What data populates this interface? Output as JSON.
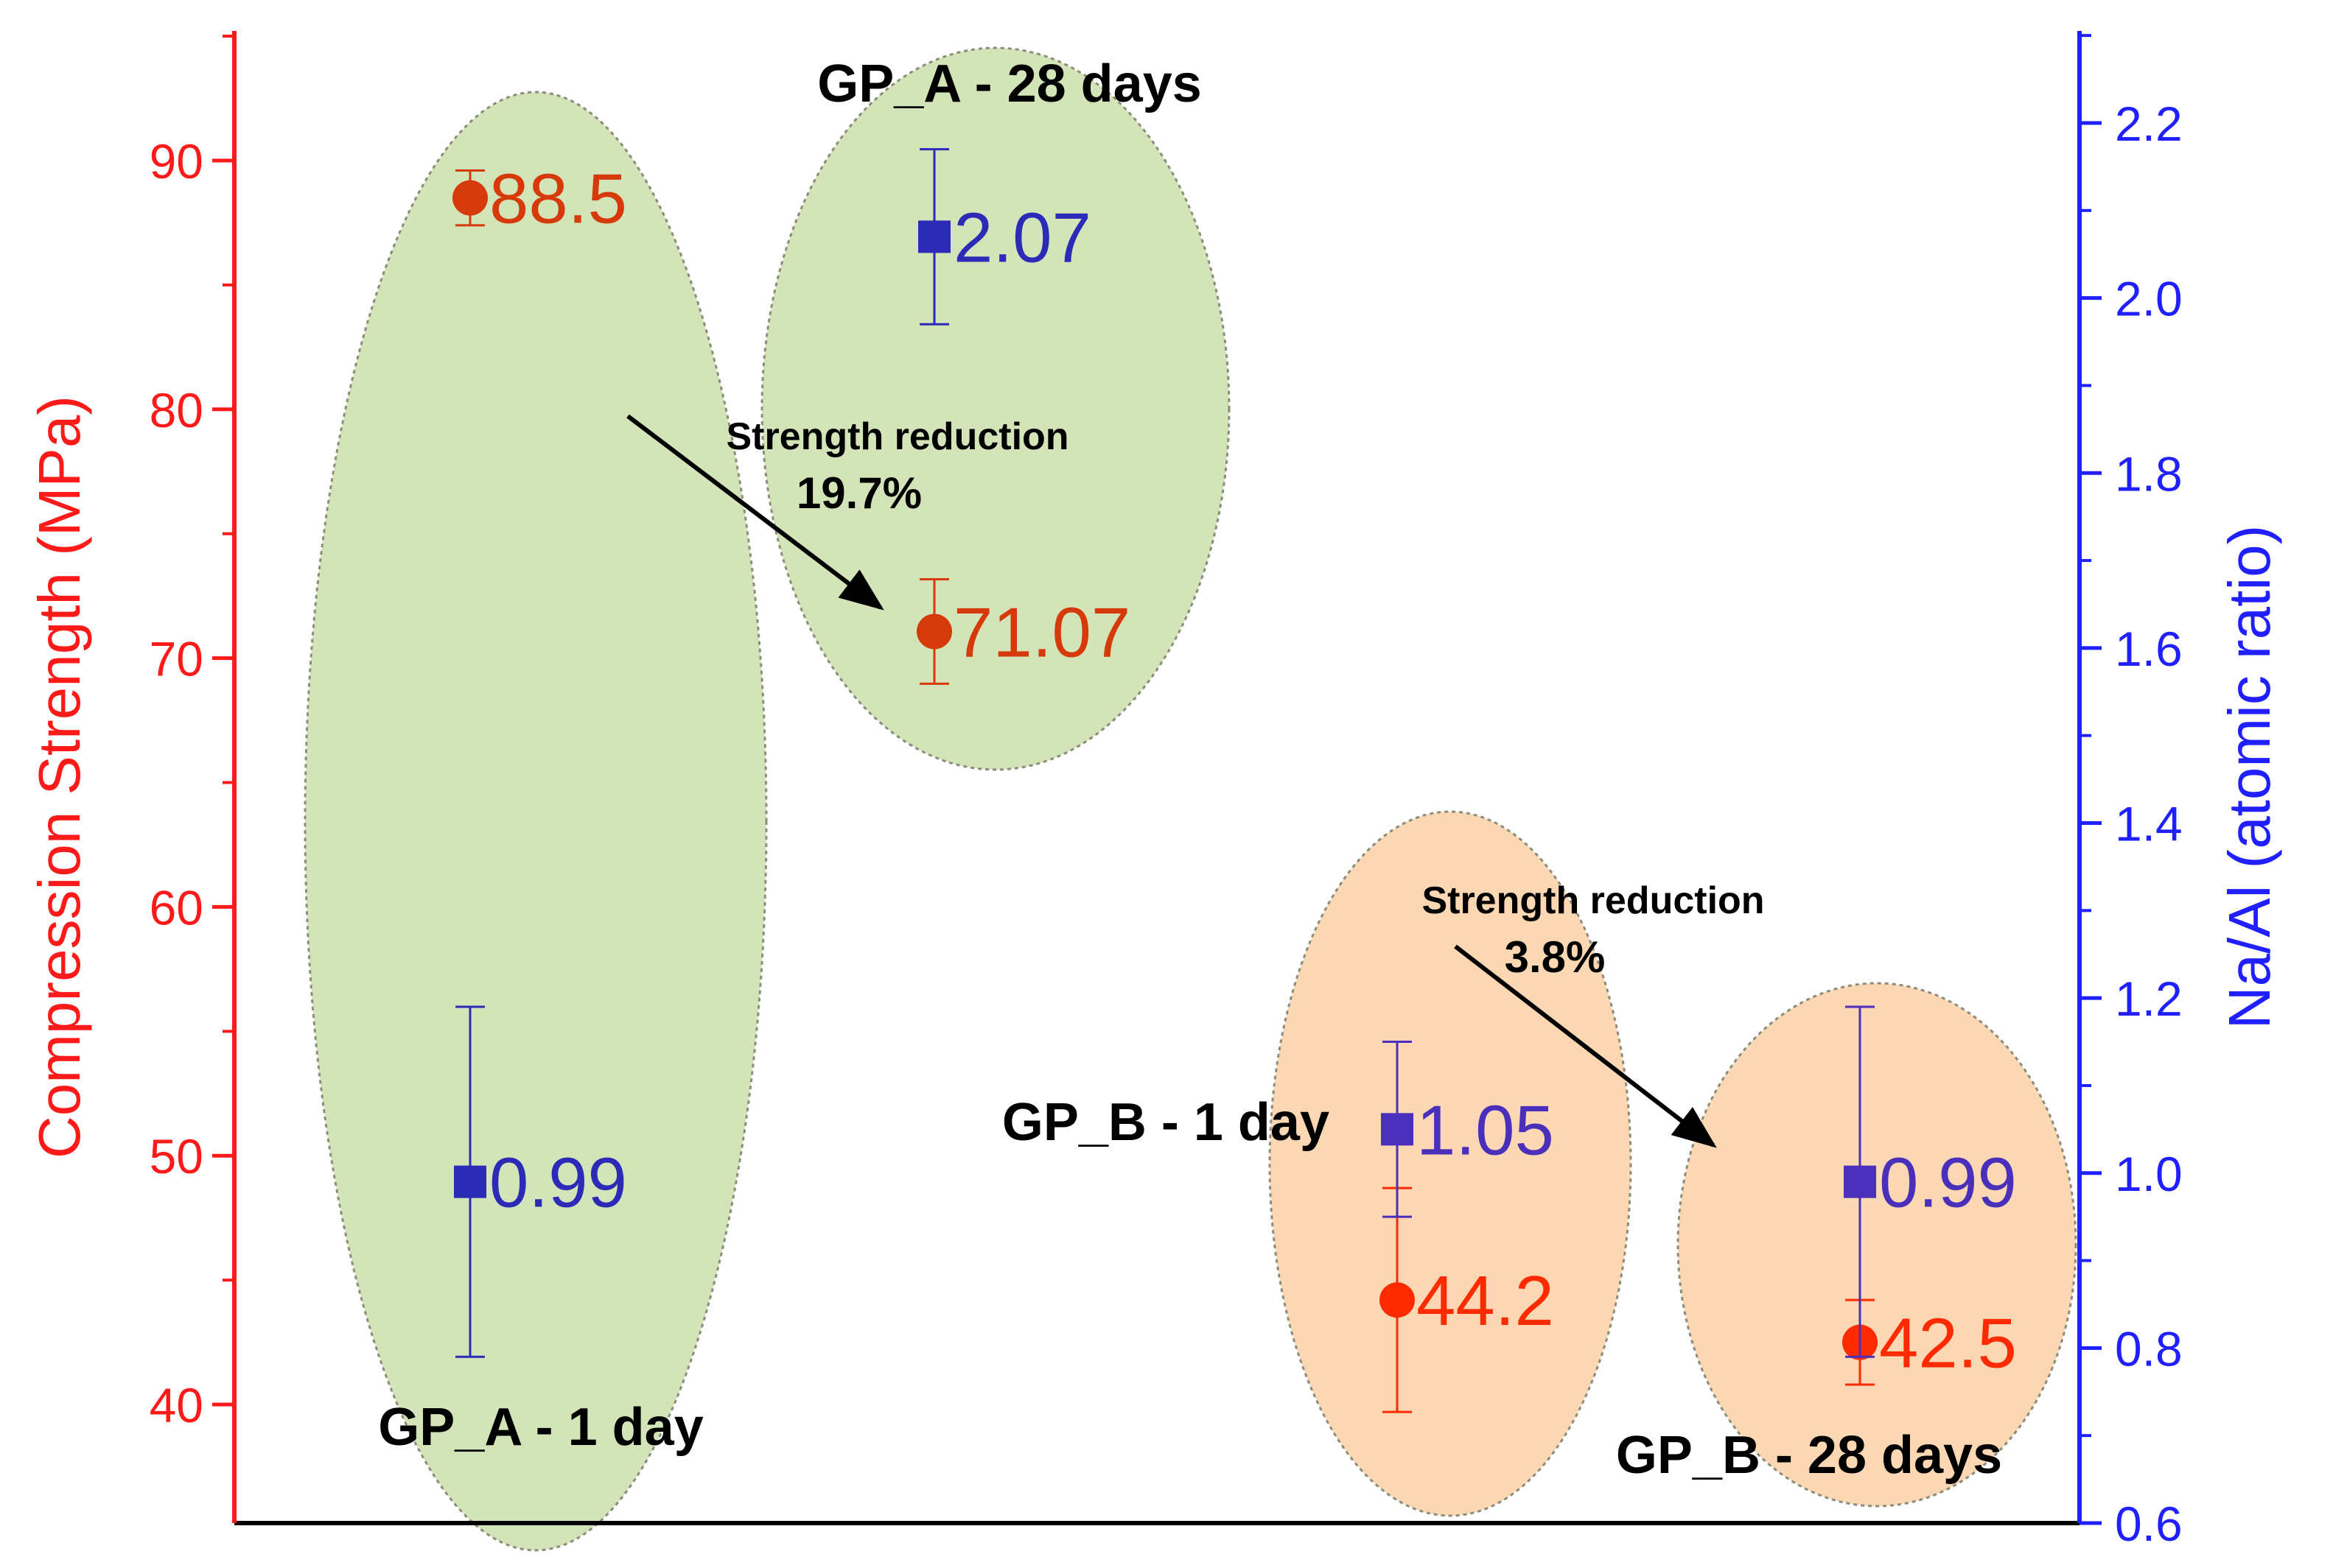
{
  "chart_data": {
    "type": "scatter",
    "title": "",
    "ylabel_left": "Compression Strength (MPa)",
    "ylabel_right": "Na/Al (atomic ratio)",
    "ylim_left": [
      35,
      95
    ],
    "ylim_right": [
      0.6,
      2.3
    ],
    "yticks_left": [
      {
        "value": 40,
        "label": "40"
      },
      {
        "value": 50,
        "label": "50"
      },
      {
        "value": 60,
        "label": "60"
      },
      {
        "value": 70,
        "label": "70"
      },
      {
        "value": 80,
        "label": "80"
      },
      {
        "value": 90,
        "label": "90"
      }
    ],
    "yticks_right": [
      {
        "value": 0.6,
        "label": "0.6"
      },
      {
        "value": 0.8,
        "label": "0.8"
      },
      {
        "value": 1.0,
        "label": "1.0"
      },
      {
        "value": 1.2,
        "label": "1.2"
      },
      {
        "value": 1.4,
        "label": "1.4"
      },
      {
        "value": 1.6,
        "label": "1.6"
      },
      {
        "value": 1.8,
        "label": "1.8"
      },
      {
        "value": 2.0,
        "label": "2.0"
      },
      {
        "value": 2.2,
        "label": "2.2"
      }
    ],
    "colors": {
      "left_axis": "#ff1a1a",
      "right_axis": "#1f1fff",
      "group_a_fill": "#d3e4b8",
      "group_b_fill": "#fbd7b4",
      "a_strength": "#d63a0a",
      "a_ratio": "#2b2bb8",
      "b_strength": "#ff2a00",
      "b_ratio": "#4a2fbb"
    },
    "groups": [
      {
        "key": "a1",
        "label": "GP_A - 1 day",
        "fill": "group_a_fill"
      },
      {
        "key": "a28",
        "label": "GP_A - 28 days",
        "fill": "group_a_fill"
      },
      {
        "key": "b1",
        "label": "GP_B - 1 day",
        "fill": "group_b_fill"
      },
      {
        "key": "b28",
        "label": "GP_B - 28 days",
        "fill": "group_b_fill"
      }
    ],
    "series": [
      {
        "name": "Compression Strength",
        "axis": "left",
        "marker": "circle",
        "points": [
          {
            "group": "a1",
            "y": 88.5,
            "err_low": 1.1,
            "err_high": 1.1,
            "label": "88.5",
            "color": "a_strength"
          },
          {
            "group": "a28",
            "y": 71.07,
            "err_low": 2.1,
            "err_high": 2.1,
            "label": "71.07",
            "color": "a_strength"
          },
          {
            "group": "b1",
            "y": 44.2,
            "err_low": 4.5,
            "err_high": 4.5,
            "label": "44.2",
            "color": "b_strength"
          },
          {
            "group": "b28",
            "y": 42.5,
            "err_low": 1.7,
            "err_high": 1.7,
            "label": "42.5",
            "color": "b_strength"
          }
        ]
      },
      {
        "name": "Na/Al",
        "axis": "right",
        "marker": "square",
        "points": [
          {
            "group": "a1",
            "y": 0.99,
            "err_low": 0.2,
            "err_high": 0.2,
            "label": "0.99",
            "color": "a_ratio"
          },
          {
            "group": "a28",
            "y": 2.07,
            "err_low": 0.1,
            "err_high": 0.1,
            "label": "2.07",
            "color": "a_ratio"
          },
          {
            "group": "b1",
            "y": 1.05,
            "err_low": 0.1,
            "err_high": 0.1,
            "label": "1.05",
            "color": "b_ratio"
          },
          {
            "group": "b28",
            "y": 0.99,
            "err_low": 0.2,
            "err_high": 0.2,
            "label": "0.99",
            "color": "b_ratio"
          }
        ]
      }
    ],
    "annotations": [
      {
        "from": "a1",
        "to": "a28",
        "line1": "Strength reduction",
        "line2": "19.7%"
      },
      {
        "from": "b1",
        "to": "b28",
        "line1": "Strength reduction",
        "line2": "3.8%"
      }
    ]
  }
}
